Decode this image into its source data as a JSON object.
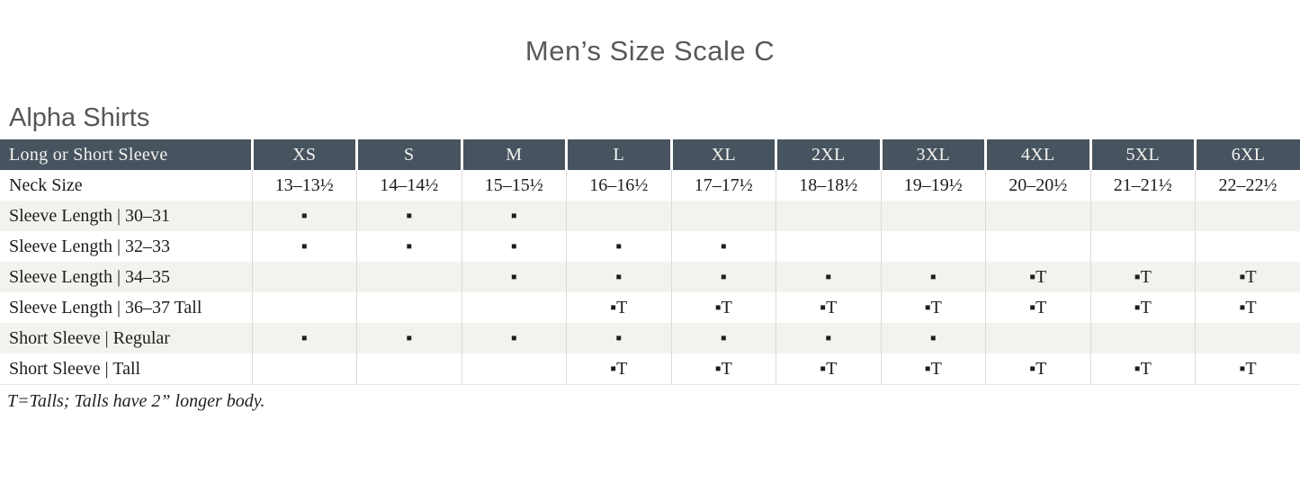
{
  "page": {
    "title": "Men’s Size Scale C",
    "section_title": "Alpha Shirts",
    "footnote": "T=Talls; Talls have 2” longer body."
  },
  "colors": {
    "header_bg": "#47545f",
    "header_text": "#f3f3f1",
    "alt_row_bg": "#f3f2ef",
    "body_text": "#1d1d1b",
    "heading_text": "#58595b"
  },
  "legend": {
    "mark": "▪",
    "tall_mark": "▪T"
  },
  "table": {
    "first_column_header": "Long or Short Sleeve",
    "size_columns": [
      "XS",
      "S",
      "M",
      "L",
      "XL",
      "2XL",
      "3XL",
      "4XL",
      "5XL",
      "6XL"
    ],
    "rows": [
      {
        "label": "Neck Size",
        "cells": [
          "13–13½",
          "14–14½",
          "15–15½",
          "16–16½",
          "17–17½",
          "18–18½",
          "19–19½",
          "20–20½",
          "21–21½",
          "22–22½"
        ]
      },
      {
        "label": "Sleeve Length  |  30–31",
        "cells": [
          "▪",
          "▪",
          "▪",
          "",
          "",
          "",
          "",
          "",
          "",
          ""
        ]
      },
      {
        "label": "Sleeve Length  |  32–33",
        "cells": [
          "▪",
          "▪",
          "▪",
          "▪",
          "▪",
          "",
          "",
          "",
          "",
          ""
        ]
      },
      {
        "label": "Sleeve Length  |  34–35",
        "cells": [
          "",
          "",
          "▪",
          "▪",
          "▪",
          "▪",
          "▪",
          "▪T",
          "▪T",
          "▪T"
        ]
      },
      {
        "label": "Sleeve Length  |  36–37 Tall",
        "cells": [
          "",
          "",
          "",
          "▪T",
          "▪T",
          "▪T",
          "▪T",
          "▪T",
          "▪T",
          "▪T"
        ]
      },
      {
        "label": "Short Sleeve  |  Regular",
        "cells": [
          "▪",
          "▪",
          "▪",
          "▪",
          "▪",
          "▪",
          "▪",
          "",
          "",
          ""
        ]
      },
      {
        "label": "Short Sleeve  |  Tall",
        "cells": [
          "",
          "",
          "",
          "▪T",
          "▪T",
          "▪T",
          "▪T",
          "▪T",
          "▪T",
          "▪T"
        ]
      }
    ]
  }
}
